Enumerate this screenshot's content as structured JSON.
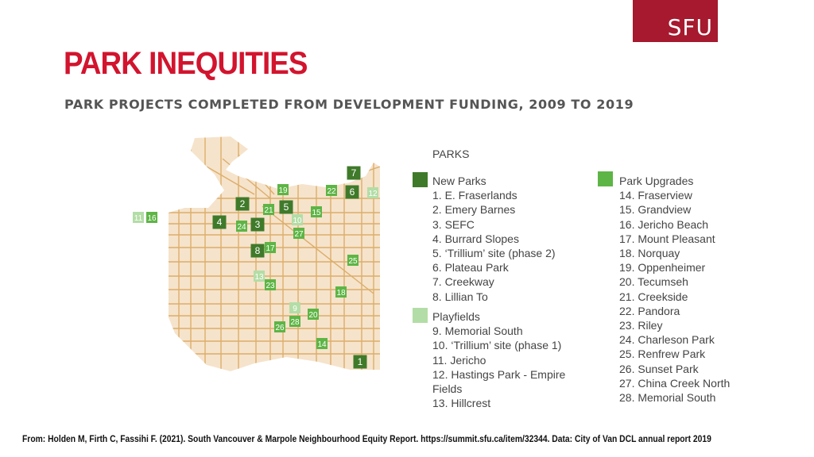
{
  "logo": "SFU",
  "title": "PARK INEQUITIES",
  "subtitle": "PARK PROJECTS COMPLETED FROM DEVELOPMENT FUNDING, 2009 TO 2019",
  "colors": {
    "new_parks": "#3f7a2a",
    "playfields": "#b3dda6",
    "park_upgrades": "#5db545",
    "land": "#f6e3cb",
    "roads": "#dcae6a",
    "title": "#d2142e"
  },
  "legend": {
    "heading": "PARKS",
    "new_parks": {
      "label": "New Parks",
      "items": [
        "1. E. Fraserlands",
        "2. Emery Barnes",
        "3. SEFC",
        "4. Burrard Slopes",
        "5. ‘Trillium’ site (phase 2)",
        "6. Plateau Park",
        "7. Creekway",
        "8. Lillian To"
      ]
    },
    "playfields": {
      "label": "Playfields",
      "items": [
        "9. Memorial South",
        "10. ‘Trillium’ site (phase 1)",
        "11. Jericho",
        "12. Hastings Park - Empire",
        "Fields",
        "13. Hillcrest"
      ]
    },
    "park_upgrades": {
      "label": "Park Upgrades",
      "items": [
        "14. Fraserview",
        "15. Grandview",
        "16. Jericho Beach",
        "17. Mount Pleasant",
        "18. Norquay",
        "19. Oppenheimer",
        "20. Tecumseh",
        "21. Creekside",
        "22. Pandora",
        "23. Riley",
        "24. Charleson Park",
        "25. Renfrew Park",
        "26. Sunset Park",
        "27. China Creek North",
        "28. Memorial South"
      ]
    }
  },
  "markers": [
    {
      "label": "1",
      "type": "new_parks"
    },
    {
      "label": "2",
      "type": "new_parks"
    },
    {
      "label": "3",
      "type": "new_parks"
    },
    {
      "label": "4",
      "type": "new_parks"
    },
    {
      "label": "5",
      "type": "new_parks"
    },
    {
      "label": "6",
      "type": "new_parks"
    },
    {
      "label": "7",
      "type": "new_parks"
    },
    {
      "label": "8",
      "type": "new_parks"
    },
    {
      "label": "9",
      "type": "playfields"
    },
    {
      "label": "10",
      "type": "playfields"
    },
    {
      "label": "11",
      "type": "playfields"
    },
    {
      "label": "12",
      "type": "playfields"
    },
    {
      "label": "13",
      "type": "playfields"
    },
    {
      "label": "14",
      "type": "park_upgrades"
    },
    {
      "label": "15",
      "type": "park_upgrades"
    },
    {
      "label": "16",
      "type": "park_upgrades"
    },
    {
      "label": "17",
      "type": "park_upgrades"
    },
    {
      "label": "18",
      "type": "park_upgrades"
    },
    {
      "label": "19",
      "type": "park_upgrades"
    },
    {
      "label": "20",
      "type": "park_upgrades"
    },
    {
      "label": "21",
      "type": "park_upgrades"
    },
    {
      "label": "22",
      "type": "park_upgrades"
    },
    {
      "label": "23",
      "type": "park_upgrades"
    },
    {
      "label": "24",
      "type": "park_upgrades"
    },
    {
      "label": "25",
      "type": "park_upgrades"
    },
    {
      "label": "26",
      "type": "park_upgrades"
    },
    {
      "label": "27",
      "type": "park_upgrades"
    },
    {
      "label": "28",
      "type": "park_upgrades"
    }
  ],
  "source": "From: Holden M, Firth C, Fassihi F. (2021). South Vancouver & Marpole Neighbourhood Equity Report. https://summit.sfu.ca/item/32344. Data: City of Van DCL annual report 2019"
}
